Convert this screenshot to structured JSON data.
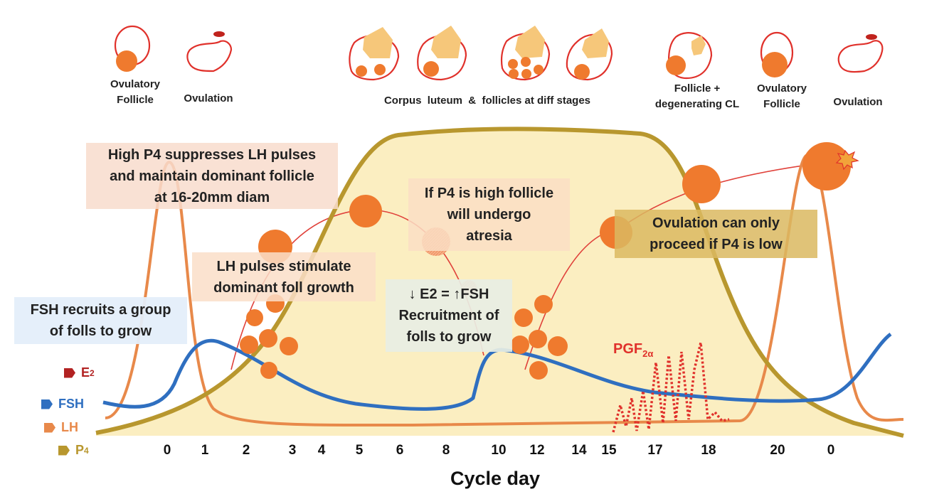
{
  "top_labels": {
    "ovulatory_follicle_1": [
      "Ovulatory",
      "Follicle"
    ],
    "ovulation_1": "Ovulation",
    "corpus_luteum": "Corpus  luteum  &  follicles at diff stages",
    "follicle_degenerating_cl": [
      "Follicle +",
      "degenerating CL"
    ],
    "ovulatory_follicle_2": [
      "Ovulatory",
      "Follicle"
    ],
    "ovulation_2": "Ovulation"
  },
  "annotations": {
    "high_p4": [
      "High P4 suppresses LH pulses",
      "and maintain dominant follicle",
      "at 16-20mm diam"
    ],
    "p4_high_atresia": [
      "If P4 is high follicle",
      "will undergo",
      "atresia"
    ],
    "lh_pulses": [
      "LH pulses stimulate",
      "dominant foll growth"
    ],
    "fsh_recruits": [
      "FSH recruits a group",
      "of folls to grow"
    ],
    "e2_fsh": [
      "↓ E2 = ↑FSH",
      "Recruitment of",
      "folls to grow"
    ],
    "ovulation_p4_low": [
      "Ovulation can only",
      "proceed if P4 is low"
    ]
  },
  "pgf": {
    "base": "PGF",
    "sub": "2α"
  },
  "legend": [
    {
      "name": "E",
      "sub": "2",
      "color": "#b22222"
    },
    {
      "name": "FSH",
      "sub": "",
      "color": "#2f6fc0"
    },
    {
      "name": "LH",
      "sub": "",
      "color": "#e8894a"
    },
    {
      "name": "P",
      "sub": "4",
      "color": "#b8972e"
    }
  ],
  "cycle_days": [
    "0",
    "1",
    "2",
    "3",
    "4",
    "5",
    "6",
    "8",
    "10",
    "12",
    "14",
    "15",
    "17",
    "18",
    "20",
    "0"
  ],
  "x_axis_title": "Cycle day",
  "colors": {
    "p4": "#b8972e",
    "p4_fill": "#fbeec1",
    "fsh": "#2f6fc0",
    "lh": "#e8894a",
    "follicle": "#ef7a2e",
    "cl": "#f6c77a",
    "ovary_outline": "#e0312b",
    "pgf": "#e0312b"
  }
}
